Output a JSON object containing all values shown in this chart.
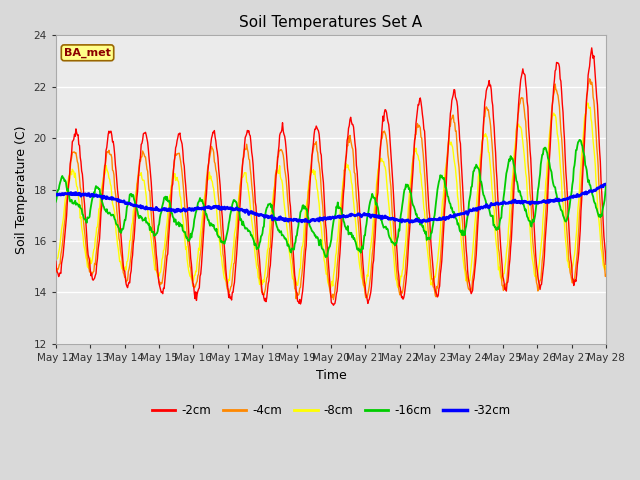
{
  "title": "Soil Temperatures Set A",
  "xlabel": "Time",
  "ylabel": "Soil Temperature (C)",
  "ylim": [
    12,
    24
  ],
  "yticks": [
    12,
    14,
    16,
    18,
    20,
    22,
    24
  ],
  "annotation": "BA_met",
  "fig_facecolor": "#e0e0e0",
  "plot_bg_color": "#e8e8e8",
  "legend_entries": [
    "-2cm",
    "-4cm",
    "-8cm",
    "-16cm",
    "-32cm"
  ],
  "legend_colors": [
    "#ff0000",
    "#ff8800",
    "#ffff00",
    "#00cc00",
    "#0000ff"
  ],
  "n_days": 16,
  "start_day": 12,
  "pts_per_day": 48
}
